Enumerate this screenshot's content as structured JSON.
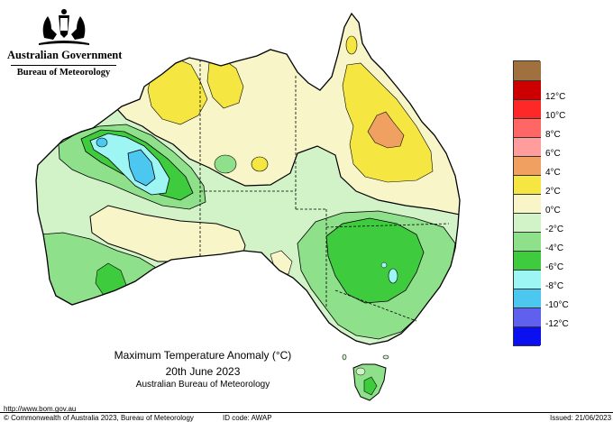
{
  "header": {
    "government": "Australian Government",
    "bureau": "Bureau of Meteorology",
    "crest_icon": "coat-of-arms-icon"
  },
  "map": {
    "title": "Maximum Temperature Anomaly (°C)",
    "date": "20th June 2023",
    "source": "Australian Bureau of Meteorology",
    "region": "Australia"
  },
  "legend": {
    "unit": "°C",
    "items": [
      {
        "label": "",
        "color": "#a0703f"
      },
      {
        "label": "12°C",
        "color": "#cc0000"
      },
      {
        "label": "10°C",
        "color": "#ff2828"
      },
      {
        "label": "8°C",
        "color": "#ff6666"
      },
      {
        "label": "6°C",
        "color": "#ff9c9c"
      },
      {
        "label": "4°C",
        "color": "#f0a060"
      },
      {
        "label": "2°C",
        "color": "#f5e642"
      },
      {
        "label": "0°C",
        "color": "#f8f6c8"
      },
      {
        "label": "-2°C",
        "color": "#d2f2c8"
      },
      {
        "label": "-4°C",
        "color": "#8ee08a"
      },
      {
        "label": "-6°C",
        "color": "#3ecc3e"
      },
      {
        "label": "-8°C",
        "color": "#9ef6f4"
      },
      {
        "label": "-10°C",
        "color": "#4cc8f0"
      },
      {
        "label": "-12°C",
        "color": "#6060ee"
      },
      {
        "label": "",
        "color": "#0a10f0"
      }
    ]
  },
  "footer": {
    "url": "http://www.bom.gov.au",
    "copyright": "© Commonwealth of Australia 2023, Bureau of Meteorology",
    "id_code": "ID code: AWAP",
    "issued": "Issued: 21/06/2023"
  }
}
